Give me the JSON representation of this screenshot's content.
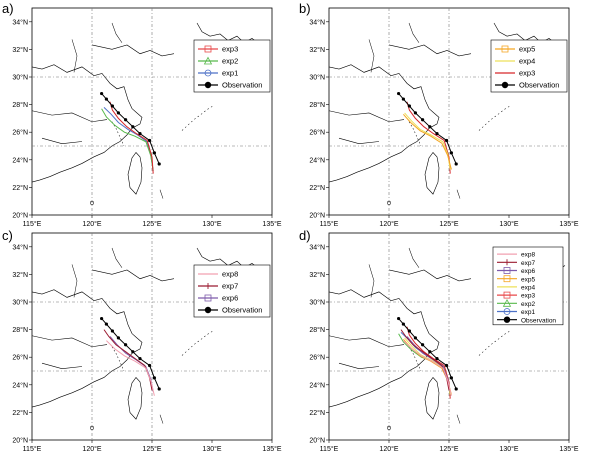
{
  "x_ticks": [
    "115°E",
    "120°E",
    "125°E",
    "130°E",
    "135°E"
  ],
  "y_ticks": [
    "34°N",
    "32°N",
    "30°N",
    "28°N",
    "26°N",
    "24°N",
    "22°N",
    "20°N"
  ],
  "panels": [
    {
      "label": "a)",
      "legend": [
        {
          "name": "exp3",
          "color": "#e8484a",
          "marker": "square"
        },
        {
          "name": "exp2",
          "color": "#58b94c",
          "marker": "triangle"
        },
        {
          "name": "exp1",
          "color": "#4e72c7",
          "marker": "circle"
        },
        {
          "name": "Observation",
          "color": "#000000",
          "marker": "dot"
        }
      ]
    },
    {
      "label": "b)",
      "legend": [
        {
          "name": "exp5",
          "color": "#f5a623",
          "marker": "square"
        },
        {
          "name": "exp4",
          "color": "#ede05a",
          "marker": "none"
        },
        {
          "name": "exp3",
          "color": "#d6272b",
          "marker": "none"
        },
        {
          "name": "Observation",
          "color": "#000000",
          "marker": "dot"
        }
      ]
    },
    {
      "label": "c)",
      "legend": [
        {
          "name": "exp8",
          "color": "#f2a0b0",
          "marker": "none"
        },
        {
          "name": "exp7",
          "color": "#9b1b30",
          "marker": "tick"
        },
        {
          "name": "exp6",
          "color": "#7e5bab",
          "marker": "square"
        },
        {
          "name": "Observation",
          "color": "#000000",
          "marker": "dot"
        }
      ]
    },
    {
      "label": "d)",
      "legend": [
        {
          "name": "exp8",
          "color": "#f2a0b0",
          "marker": "none"
        },
        {
          "name": "exp7",
          "color": "#9b1b30",
          "marker": "tick"
        },
        {
          "name": "exp6",
          "color": "#7e5bab",
          "marker": "square"
        },
        {
          "name": "exp5",
          "color": "#f5a623",
          "marker": "square"
        },
        {
          "name": "exp4",
          "color": "#ede05a",
          "marker": "none"
        },
        {
          "name": "exp3",
          "color": "#e8484a",
          "marker": "square"
        },
        {
          "name": "exp2",
          "color": "#58b94c",
          "marker": "triangle"
        },
        {
          "name": "exp1",
          "color": "#4e72c7",
          "marker": "circle"
        },
        {
          "name": "Observation",
          "color": "#000000",
          "marker": "dot"
        }
      ]
    }
  ],
  "observation_track": [
    [
      125.6,
      23.7
    ],
    [
      125.2,
      24.5
    ],
    [
      124.8,
      25.4
    ],
    [
      124.0,
      25.9
    ],
    [
      123.4,
      26.4
    ],
    [
      122.8,
      26.9
    ],
    [
      122.2,
      27.4
    ],
    [
      121.7,
      27.9
    ],
    [
      121.2,
      28.4
    ],
    [
      120.8,
      28.8
    ]
  ],
  "experiment_tracks": {
    "exp1": {
      "color": "#4e72c7",
      "points": [
        [
          125.1,
          23.2
        ],
        [
          124.9,
          24.3
        ],
        [
          124.6,
          25.3
        ],
        [
          123.8,
          25.8
        ],
        [
          123.0,
          26.2
        ],
        [
          122.2,
          26.7
        ],
        [
          121.6,
          27.3
        ],
        [
          121.0,
          27.8
        ]
      ]
    },
    "exp2": {
      "color": "#58b94c",
      "points": [
        [
          125.1,
          23.2
        ],
        [
          124.9,
          24.3
        ],
        [
          124.5,
          25.3
        ],
        [
          123.6,
          25.7
        ],
        [
          122.7,
          26.0
        ],
        [
          121.9,
          26.5
        ],
        [
          121.2,
          27.1
        ],
        [
          120.8,
          27.7
        ]
      ]
    },
    "exp3": {
      "color": "#d6272b",
      "points": [
        [
          125.1,
          23.0
        ],
        [
          125.0,
          24.2
        ],
        [
          124.6,
          25.4
        ],
        [
          123.7,
          25.9
        ],
        [
          122.9,
          26.4
        ],
        [
          122.2,
          27.0
        ],
        [
          121.7,
          27.6
        ],
        [
          121.5,
          28.2
        ]
      ]
    },
    "exp4": {
      "color": "#ede05a",
      "points": [
        [
          125.1,
          23.3
        ],
        [
          124.9,
          24.4
        ],
        [
          124.5,
          25.3
        ],
        [
          123.5,
          25.8
        ],
        [
          122.6,
          26.2
        ],
        [
          121.9,
          26.8
        ],
        [
          121.3,
          27.4
        ]
      ]
    },
    "exp5": {
      "color": "#f5a623",
      "points": [
        [
          125.2,
          23.3
        ],
        [
          124.9,
          24.3
        ],
        [
          124.4,
          25.2
        ],
        [
          123.5,
          25.7
        ],
        [
          122.6,
          26.1
        ],
        [
          121.8,
          26.7
        ],
        [
          121.2,
          27.3
        ]
      ]
    },
    "exp6": {
      "color": "#7e5bab",
      "points": [
        [
          125.1,
          23.5
        ],
        [
          124.9,
          24.4
        ],
        [
          124.5,
          25.3
        ],
        [
          123.7,
          25.8
        ],
        [
          122.8,
          26.3
        ],
        [
          122.1,
          26.9
        ],
        [
          121.5,
          27.5
        ]
      ]
    },
    "exp7": {
      "color": "#9b1b30",
      "points": [
        [
          125.0,
          23.6
        ],
        [
          124.8,
          24.5
        ],
        [
          124.4,
          25.4
        ],
        [
          123.6,
          25.9
        ],
        [
          122.8,
          26.4
        ],
        [
          122.0,
          26.9
        ],
        [
          121.4,
          27.5
        ],
        [
          121.0,
          28.0
        ]
      ]
    },
    "exp8": {
      "color": "#f2a0b0",
      "points": [
        [
          125.2,
          23.2
        ],
        [
          124.9,
          24.3
        ],
        [
          124.5,
          25.2
        ],
        [
          123.6,
          25.7
        ],
        [
          122.7,
          26.1
        ],
        [
          121.9,
          26.6
        ],
        [
          121.2,
          27.2
        ]
      ]
    }
  },
  "panel_tracks": {
    "a": [
      "exp1",
      "exp2",
      "exp3"
    ],
    "b": [
      "exp3",
      "exp4",
      "exp5"
    ],
    "c": [
      "exp6",
      "exp7",
      "exp8"
    ],
    "d": [
      "exp1",
      "exp2",
      "exp3",
      "exp4",
      "exp5",
      "exp6",
      "exp7",
      "exp8"
    ]
  },
  "map_extent": {
    "lon": [
      115,
      135
    ],
    "lat": [
      20,
      35
    ]
  },
  "gridlines": {
    "lon": 120,
    "lat": 30,
    "lat2": 25,
    "lon2": 125
  }
}
